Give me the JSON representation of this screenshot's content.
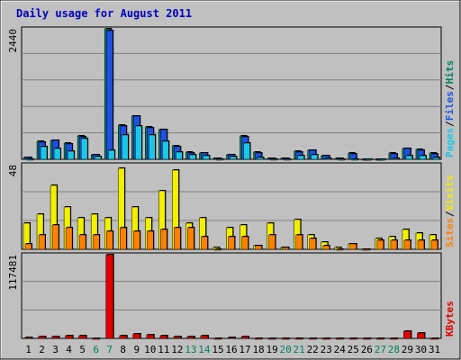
{
  "chart_data": {
    "type": "bar",
    "title": "Daily usage for August 2011",
    "categories": [
      "1",
      "2",
      "3",
      "4",
      "5",
      "6",
      "7",
      "8",
      "9",
      "10",
      "11",
      "12",
      "13",
      "14",
      "15",
      "16",
      "17",
      "18",
      "19",
      "20",
      "21",
      "22",
      "23",
      "24",
      "25",
      "26",
      "27",
      "28",
      "29",
      "30",
      "31"
    ],
    "weekend_days": [
      "6",
      "7",
      "13",
      "14",
      "20",
      "21",
      "27",
      "28"
    ],
    "panels": [
      {
        "name": "top",
        "ymax_label": "2440",
        "ymax": 2440,
        "series_labels": [
          "Pages",
          "Files",
          "Hits"
        ],
        "series": [
          {
            "name": "Hits",
            "color": "#00805c",
            "values": [
              30,
              330,
              360,
              300,
              430,
              80,
              2440,
              640,
              810,
              600,
              560,
              250,
              130,
              120,
              15,
              80,
              430,
              130,
              15,
              10,
              150,
              170,
              60,
              20,
              110,
              0,
              0,
              110,
              210,
              180,
              110
            ]
          },
          {
            "name": "Files",
            "color": "#1e50e6",
            "values": [
              30,
              320,
              350,
              290,
              420,
              80,
              2410,
              630,
              800,
              590,
              550,
              240,
              120,
              110,
              15,
              80,
              420,
              120,
              15,
              10,
              140,
              160,
              60,
              20,
              100,
              0,
              0,
              100,
              200,
              170,
              100
            ]
          },
          {
            "name": "Pages",
            "color": "#19c8e6",
            "values": [
              0,
              240,
              200,
              150,
              380,
              50,
              170,
              460,
              620,
              460,
              330,
              140,
              80,
              60,
              5,
              50,
              310,
              30,
              5,
              5,
              70,
              80,
              20,
              0,
              0,
              0,
              0,
              20,
              60,
              60,
              40
            ]
          }
        ]
      },
      {
        "name": "middle",
        "ymax_label": "48",
        "ymax": 48,
        "series_labels": [
          "Sites",
          "Visits"
        ],
        "series": [
          {
            "name": "Visits",
            "color": "#f0f000",
            "values": [
              15,
              20,
              36,
              24,
              18,
              20,
              18,
              46,
              24,
              18,
              33,
              45,
              15,
              18,
              1,
              12,
              14,
              2,
              15,
              1,
              17,
              8,
              4,
              1,
              3,
              0,
              6,
              7,
              11,
              9,
              8
            ]
          },
          {
            "name": "Sites",
            "color": "#ff8000",
            "values": [
              3,
              8,
              14,
              12,
              8,
              8,
              10,
              12,
              10,
              10,
              11,
              12,
              12,
              7,
              0,
              7,
              7,
              2,
              8,
              1,
              8,
              6,
              2,
              0,
              3,
              0,
              5,
              5,
              5,
              5,
              5
            ]
          }
        ]
      },
      {
        "name": "bottom",
        "ymax_label": "117481",
        "ymax": 117481,
        "series_labels": [
          "KBytes"
        ],
        "series": [
          {
            "name": "KBytes",
            "color": "#e00000",
            "values": [
              1500,
              3000,
              3000,
              3500,
              3500,
              0,
              117481,
              3500,
              6000,
              4500,
              3500,
              3000,
              2500,
              3500,
              0,
              1000,
              2500,
              0,
              0,
              0,
              0,
              0,
              0,
              0,
              0,
              0,
              0,
              0,
              10500,
              8000,
              0
            ]
          }
        ]
      }
    ]
  },
  "colors": {
    "background": "#c0c0c0",
    "title": "#0000c0",
    "grid": "#808080",
    "weekday_label": "#000000",
    "weekend_label": "#00805c",
    "separator": "#000000"
  }
}
